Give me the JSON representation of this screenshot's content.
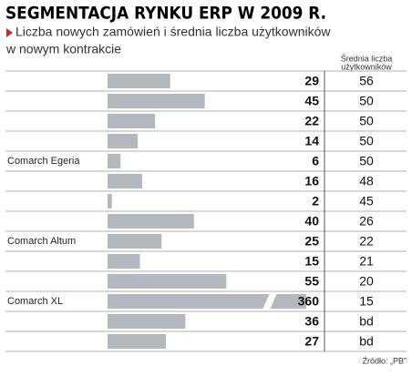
{
  "chart_data": {
    "type": "bar",
    "title": "SEGMENTACJA RYNKU ERP W 2009 R.",
    "subtitle": [
      "Liczba nowych zamówień i średnia liczba użytkowników",
      "w nowym kontrakcie"
    ],
    "column_header": [
      "Średnia liczba",
      "użytkowników"
    ],
    "categories": [
      null,
      null,
      null,
      null,
      "Comarch Egeria",
      null,
      null,
      null,
      "Comarch Altum",
      null,
      null,
      "Comarch XL",
      null,
      null
    ],
    "values": [
      29,
      45,
      22,
      14,
      6,
      16,
      2,
      40,
      25,
      15,
      55,
      360,
      36,
      27
    ],
    "users": [
      56,
      50,
      50,
      50,
      50,
      48,
      45,
      26,
      22,
      21,
      20,
      15,
      "bd",
      "bd"
    ],
    "color": "#b3b8be",
    "source": "Źródło: „PB”"
  }
}
